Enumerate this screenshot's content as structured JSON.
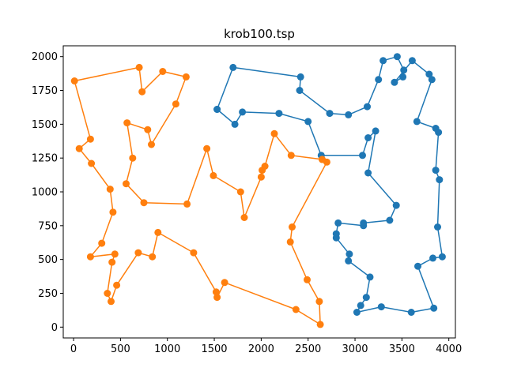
{
  "chart_data": {
    "type": "line",
    "title": "krob100.tsp",
    "xlabel": "",
    "ylabel": "",
    "xlim": [
      -110,
      4070
    ],
    "ylim": [
      -80,
      2080
    ],
    "x_ticks": [
      0,
      500,
      1000,
      1500,
      2000,
      2500,
      3000,
      3500,
      4000
    ],
    "y_ticks": [
      0,
      250,
      500,
      750,
      1000,
      1250,
      1500,
      1750,
      2000
    ],
    "grid": false,
    "series": [
      {
        "color": "#1f77b4",
        "points": [
          [
            1530,
            1610
          ],
          [
            1700,
            1920
          ],
          [
            2420,
            1850
          ],
          [
            2410,
            1750
          ],
          [
            2730,
            1580
          ],
          [
            2930,
            1570
          ],
          [
            3130,
            1630
          ],
          [
            3250,
            1830
          ],
          [
            3300,
            1970
          ],
          [
            3450,
            2000
          ],
          [
            3520,
            1900
          ],
          [
            3510,
            1850
          ],
          [
            3420,
            1810
          ],
          [
            3610,
            1970
          ],
          [
            3790,
            1870
          ],
          [
            3820,
            1830
          ],
          [
            3660,
            1520
          ],
          [
            3860,
            1470
          ],
          [
            3890,
            1440
          ],
          [
            3860,
            1160
          ],
          [
            3900,
            1090
          ],
          [
            3880,
            740
          ],
          [
            3930,
            520
          ],
          [
            3830,
            510
          ],
          [
            3670,
            450
          ],
          [
            3840,
            140
          ],
          [
            3600,
            110
          ],
          [
            3280,
            150
          ],
          [
            3020,
            110
          ],
          [
            3060,
            160
          ],
          [
            3120,
            220
          ],
          [
            3160,
            370
          ],
          [
            2930,
            490
          ],
          [
            2940,
            540
          ],
          [
            2800,
            660
          ],
          [
            2800,
            690
          ],
          [
            2820,
            770
          ],
          [
            3090,
            750
          ],
          [
            3090,
            770
          ],
          [
            3370,
            790
          ],
          [
            3440,
            900
          ],
          [
            3140,
            1140
          ],
          [
            3220,
            1450
          ],
          [
            3140,
            1400
          ],
          [
            3080,
            1270
          ],
          [
            2640,
            1270
          ],
          [
            2500,
            1520
          ],
          [
            2190,
            1580
          ],
          [
            1800,
            1590
          ],
          [
            1720,
            1500
          ],
          [
            1530,
            1610
          ]
        ]
      },
      {
        "color": "#ff7f0e",
        "points": [
          [
            2650,
            1240
          ],
          [
            2700,
            1220
          ],
          [
            2330,
            740
          ],
          [
            2310,
            630
          ],
          [
            2490,
            350
          ],
          [
            2620,
            190
          ],
          [
            2630,
            20
          ],
          [
            2370,
            130
          ],
          [
            1610,
            330
          ],
          [
            1530,
            220
          ],
          [
            1520,
            260
          ],
          [
            1280,
            550
          ],
          [
            900,
            700
          ],
          [
            840,
            520
          ],
          [
            690,
            550
          ],
          [
            460,
            310
          ],
          [
            400,
            190
          ],
          [
            360,
            250
          ],
          [
            410,
            480
          ],
          [
            440,
            540
          ],
          [
            180,
            520
          ],
          [
            300,
            620
          ],
          [
            420,
            850
          ],
          [
            390,
            1020
          ],
          [
            190,
            1210
          ],
          [
            60,
            1320
          ],
          [
            180,
            1390
          ],
          [
            10,
            1820
          ],
          [
            700,
            1920
          ],
          [
            730,
            1740
          ],
          [
            950,
            1890
          ],
          [
            1200,
            1850
          ],
          [
            1090,
            1650
          ],
          [
            830,
            1350
          ],
          [
            790,
            1460
          ],
          [
            570,
            1510
          ],
          [
            630,
            1250
          ],
          [
            560,
            1060
          ],
          [
            750,
            920
          ],
          [
            1210,
            910
          ],
          [
            1420,
            1320
          ],
          [
            1490,
            1120
          ],
          [
            1780,
            1000
          ],
          [
            1820,
            810
          ],
          [
            2000,
            1110
          ],
          [
            2010,
            1160
          ],
          [
            2040,
            1190
          ],
          [
            2140,
            1430
          ],
          [
            2320,
            1270
          ],
          [
            2650,
            1240
          ]
        ]
      }
    ]
  }
}
